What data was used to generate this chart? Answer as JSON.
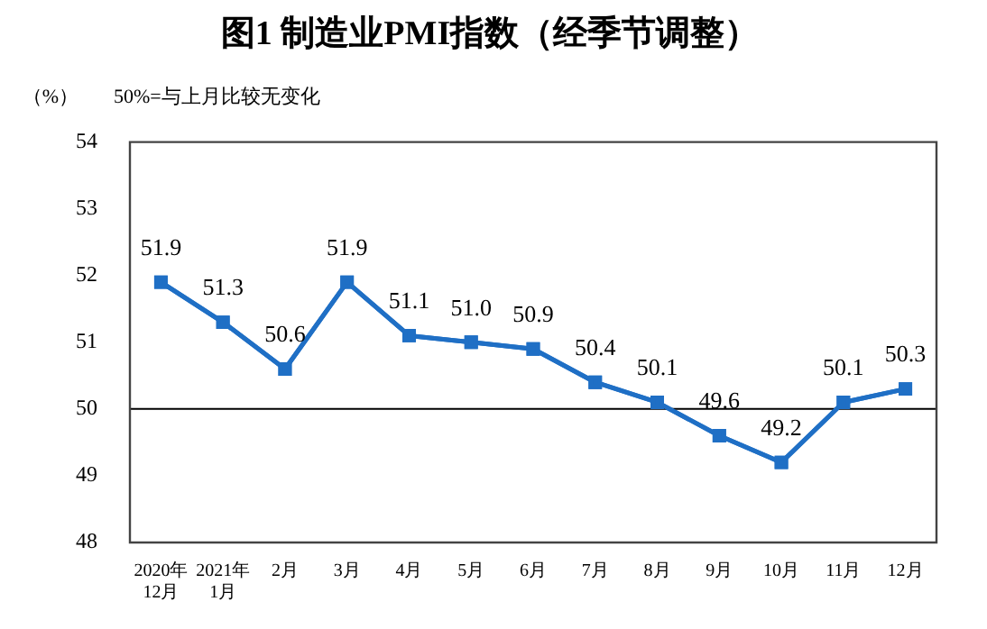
{
  "chart_data": {
    "type": "line",
    "title": "图1 制造业PMI指数（经季节调整）",
    "ylabel": "（%）",
    "annotations": [
      "50%=与上月比较无变化"
    ],
    "categories": [
      "2020年\n12月",
      "2021年\n1月",
      "2月",
      "3月",
      "4月",
      "5月",
      "6月",
      "7月",
      "8月",
      "9月",
      "10月",
      "11月",
      "12月"
    ],
    "series": [
      {
        "color": "#1f6fc5",
        "values": [
          51.9,
          51.3,
          50.6,
          51.9,
          51.1,
          51.0,
          50.9,
          50.4,
          50.1,
          49.6,
          49.2,
          50.1,
          50.3
        ],
        "value_labels": [
          "51.9",
          "51.3",
          "50.6",
          "51.9",
          "51.1",
          "51.0",
          "50.9",
          "50.4",
          "50.1",
          "49.6",
          "49.2",
          "50.1",
          "50.3"
        ]
      }
    ],
    "ylim": [
      48,
      54
    ],
    "yticks": [
      48,
      49,
      50,
      51,
      52,
      53,
      54
    ],
    "grid": false,
    "legend": false,
    "marker": "square",
    "line_style": "solid",
    "ref_lines": [
      {
        "axis": "y",
        "value": 50,
        "color": "#000000"
      }
    ]
  }
}
